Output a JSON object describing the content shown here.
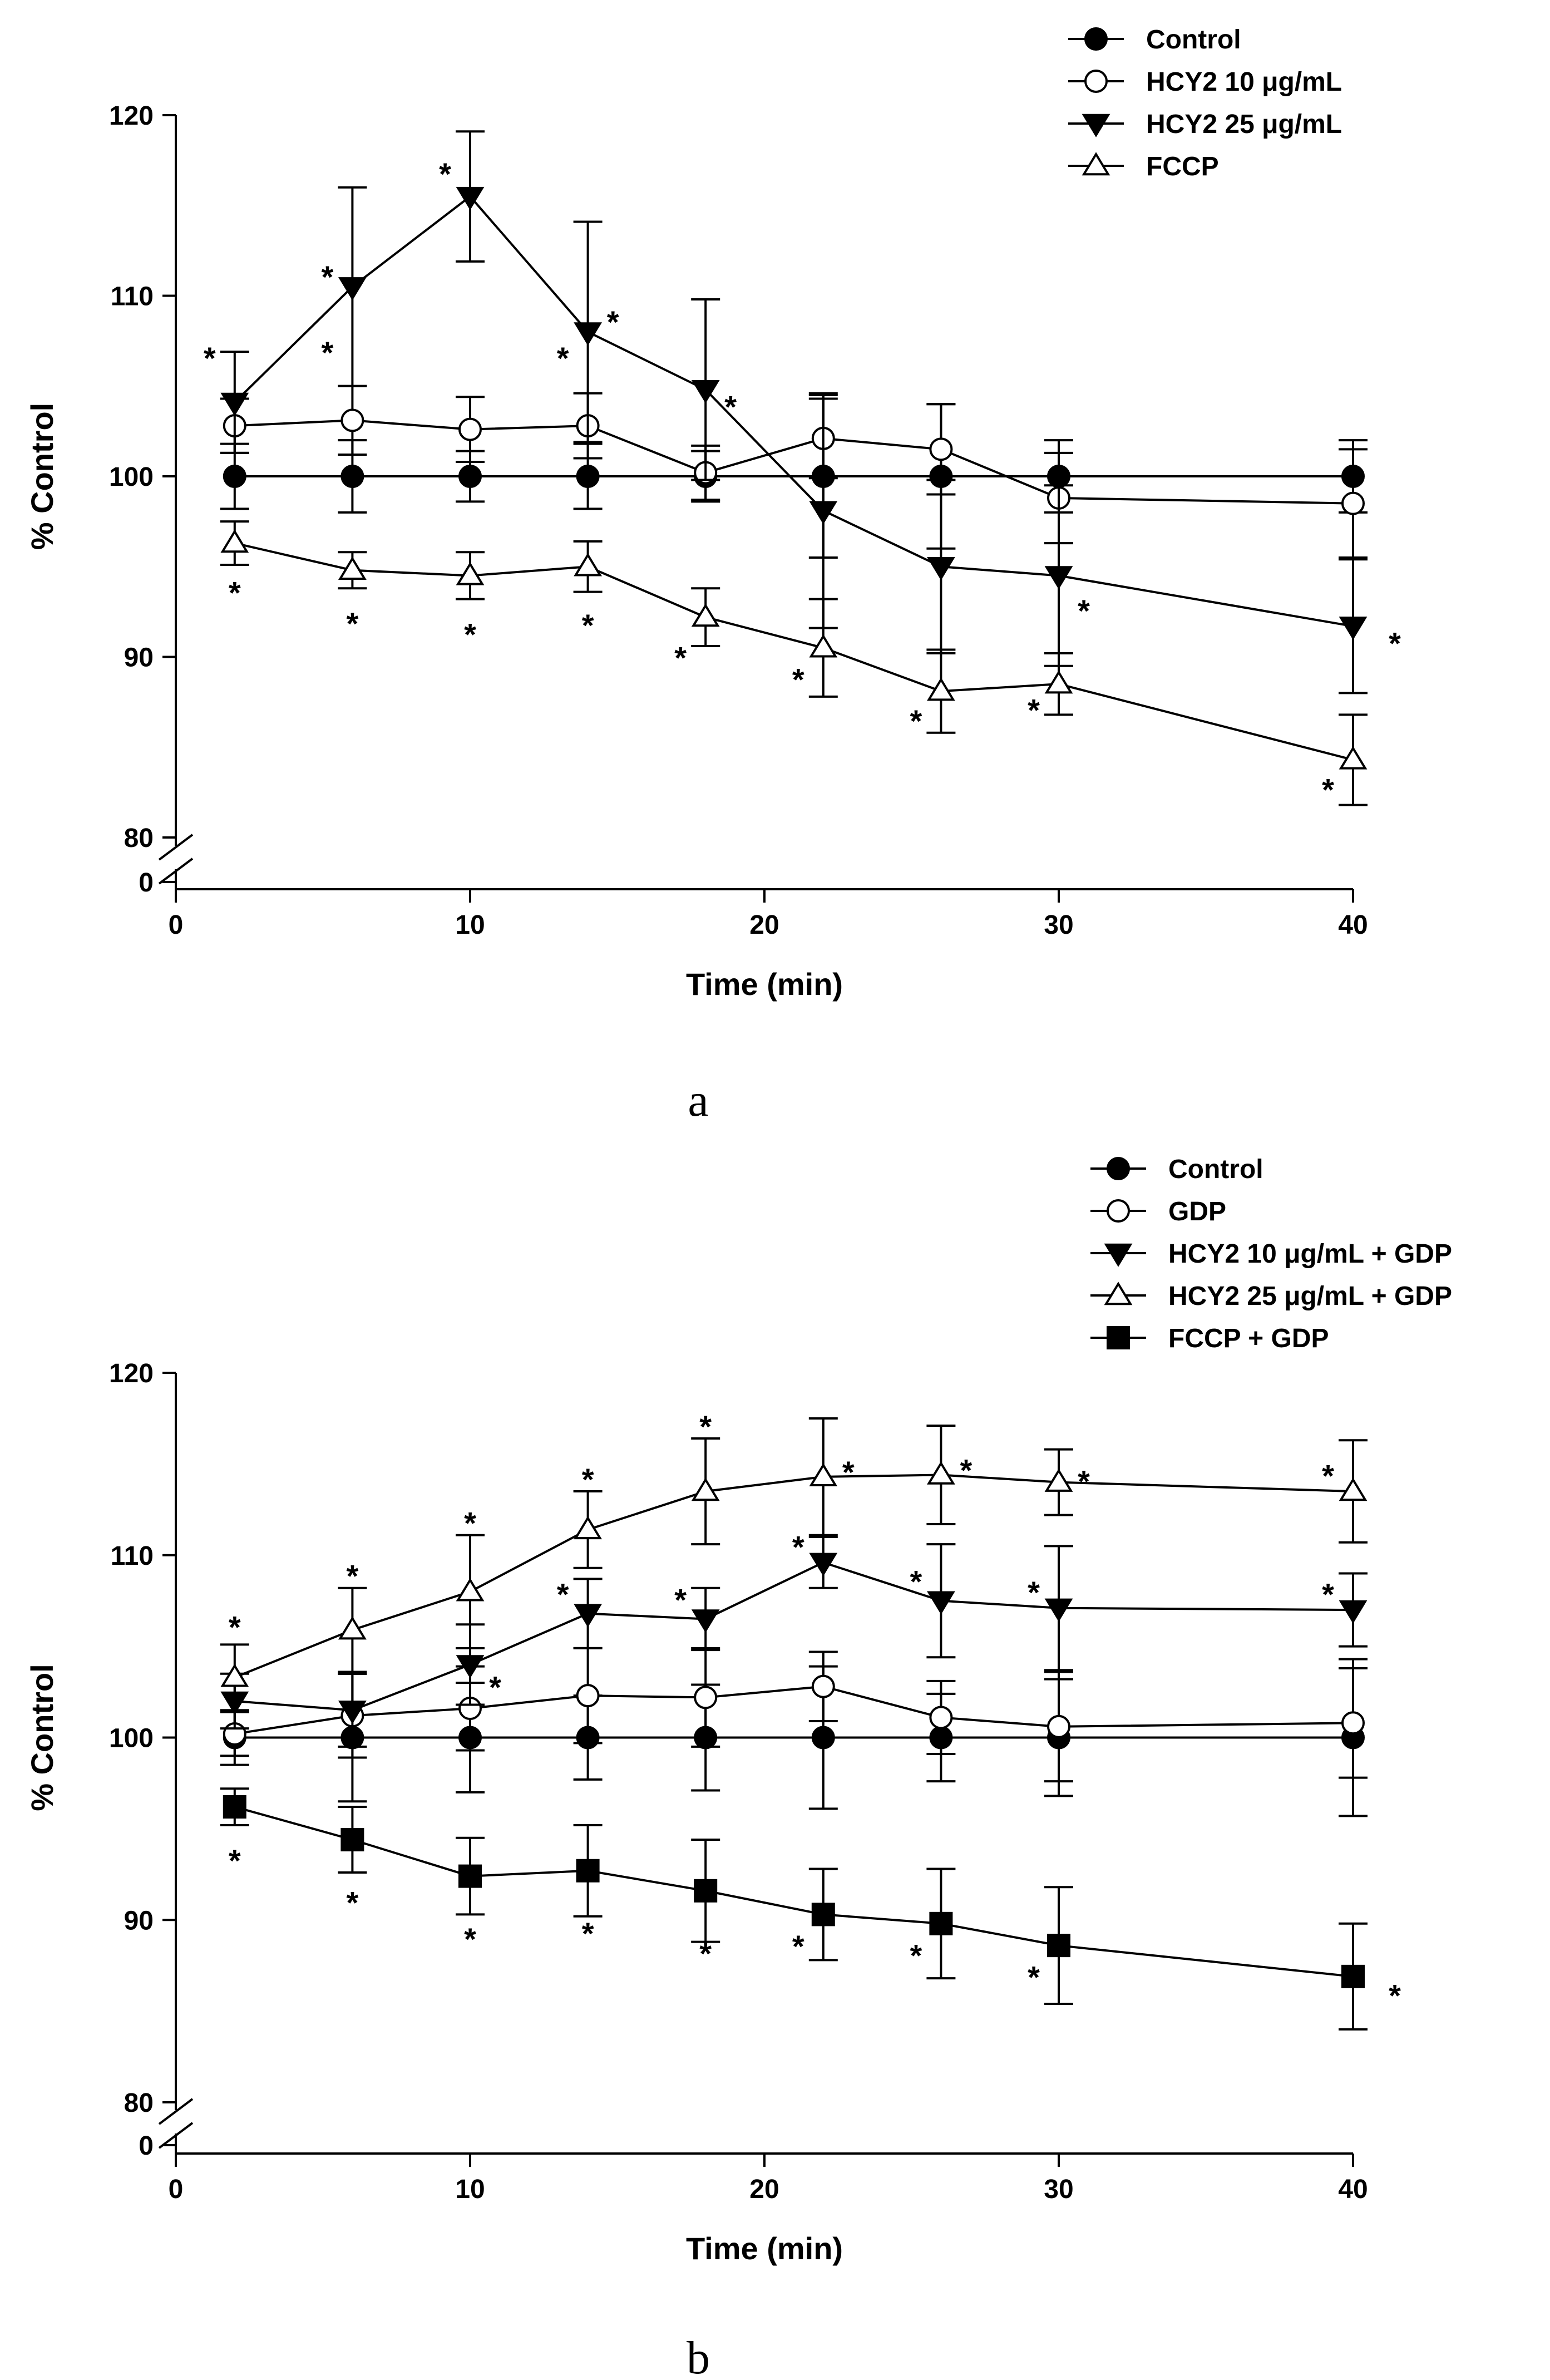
{
  "chart_data": [
    {
      "type": "line",
      "panel_label": "a",
      "xlabel": "Time (min)",
      "ylabel": "% Control",
      "xlim": [
        0,
        40
      ],
      "ylim": [
        80,
        120
      ],
      "axis_break": true,
      "x_ticks": [
        0,
        10,
        20,
        30,
        40
      ],
      "y_ticks": [
        80,
        90,
        100,
        110,
        120
      ],
      "y_break_label": "0",
      "legend_position": "top-right",
      "x": [
        2,
        6,
        10,
        14,
        18,
        22,
        26,
        30,
        40
      ],
      "series": [
        {
          "name": "Control",
          "marker": "circle-filled",
          "values": [
            100,
            100,
            100,
            100,
            100,
            100,
            100,
            100,
            100
          ],
          "errors": [
            1.8,
            2.0,
            1.4,
            1.8,
            1.4,
            4.5,
            4.0,
            2.0,
            2.0
          ],
          "stars": []
        },
        {
          "name": "HCY2 10 μg/mL",
          "marker": "circle-open",
          "values": [
            102.8,
            103.1,
            102.6,
            102.8,
            100.2,
            102.1,
            101.5,
            98.8,
            98.5
          ],
          "errors": [
            1.5,
            1.9,
            1.8,
            1.8,
            1.5,
            2.2,
            2.5,
            2.5,
            3.0
          ],
          "stars": [
            {
              "x": 2,
              "side": "left",
              "dy": 4.2
            },
            {
              "x": 6,
              "side": "left",
              "dy": 4.2
            },
            {
              "x": 14,
              "side": "left",
              "dy": 4.2
            }
          ]
        },
        {
          "name": "HCY2 25 μg/mL",
          "marker": "triangle-down-filled",
          "values": [
            104.1,
            110.5,
            115.5,
            108,
            104.8,
            98.1,
            95,
            94.5,
            91.7
          ],
          "errors": [
            2.8,
            5.5,
            3.6,
            6.1,
            5.0,
            6.5,
            4.8,
            5.0,
            3.7
          ],
          "stars": [
            {
              "x": 10,
              "side": "left",
              "dy": 1.7
            },
            {
              "x": 6,
              "side": "left",
              "dy": 1.0
            },
            {
              "x": 14,
              "side": "right",
              "dy": 1.0
            },
            {
              "x": 18,
              "side": "right",
              "dy": -0.5
            },
            {
              "x": 30,
              "side": "right",
              "dy": -1.5
            },
            {
              "x": 40,
              "side": "far-right",
              "dy": -0.5
            }
          ]
        },
        {
          "name": "FCCP",
          "marker": "triangle-up-open",
          "values": [
            96.3,
            94.8,
            94.5,
            95,
            92.2,
            90.5,
            88.1,
            88.5,
            84.3
          ],
          "errors": [
            1.2,
            1.0,
            1.3,
            1.4,
            1.6,
            2.7,
            2.3,
            1.7,
            2.5
          ],
          "stars": [
            {
              "x": 2,
              "side": "below",
              "dy": -2.3
            },
            {
              "x": 6,
              "side": "below",
              "dy": -2.5
            },
            {
              "x": 10,
              "side": "below",
              "dy": -2.8
            },
            {
              "x": 14,
              "side": "below",
              "dy": -2.8
            },
            {
              "x": 18,
              "side": "left",
              "dy": -1.8
            },
            {
              "x": 22,
              "side": "left",
              "dy": -1.3
            },
            {
              "x": 26,
              "side": "left",
              "dy": -1.2
            },
            {
              "x": 30,
              "side": "left",
              "dy": -1.0
            },
            {
              "x": 40,
              "side": "left",
              "dy": -1.2
            }
          ]
        }
      ]
    },
    {
      "type": "line",
      "panel_label": "b",
      "xlabel": "Time (min)",
      "ylabel": "% Control",
      "xlim": [
        0,
        40
      ],
      "ylim": [
        80,
        120
      ],
      "axis_break": true,
      "x_ticks": [
        0,
        10,
        20,
        30,
        40
      ],
      "y_ticks": [
        80,
        90,
        100,
        110,
        120
      ],
      "y_break_label": "0",
      "legend_position": "top-right",
      "x": [
        2,
        6,
        10,
        14,
        18,
        22,
        26,
        30,
        40
      ],
      "series": [
        {
          "name": "Control",
          "marker": "circle-filled",
          "values": [
            100,
            100,
            100,
            100,
            100,
            100,
            100,
            100,
            100
          ],
          "errors": [
            1.5,
            3.5,
            3.0,
            2.3,
            2.9,
            3.9,
            2.4,
            3.2,
            4.3
          ],
          "stars": []
        },
        {
          "name": "GDP",
          "marker": "circle-open",
          "values": [
            100.2,
            101.2,
            101.6,
            102.3,
            102.2,
            102.8,
            101.1,
            100.6,
            100.8
          ],
          "errors": [
            1.2,
            2.3,
            2.3,
            2.6,
            2.7,
            1.9,
            2.0,
            3.0,
            3.0
          ],
          "stars": []
        },
        {
          "name": "HCY2 10 μg/mL + GDP",
          "marker": "triangle-down-filled",
          "values": [
            102,
            101.5,
            104,
            106.8,
            106.5,
            109.6,
            107.5,
            107.1,
            107
          ],
          "errors": [
            1.5,
            2.0,
            2.2,
            1.9,
            1.7,
            1.4,
            3.1,
            3.4,
            2.0
          ],
          "stars": [
            {
              "x": 10,
              "side": "right",
              "dy": -0.8
            },
            {
              "x": 14,
              "side": "left",
              "dy": 1.5
            },
            {
              "x": 18,
              "side": "left",
              "dy": 1.5
            },
            {
              "x": 22,
              "side": "left",
              "dy": 1.3
            },
            {
              "x": 26,
              "side": "left",
              "dy": 1.5
            },
            {
              "x": 30,
              "side": "left",
              "dy": 1.3
            },
            {
              "x": 40,
              "side": "left",
              "dy": 1.3
            }
          ]
        },
        {
          "name": "HCY2 25 μg/mL + GDP",
          "marker": "triangle-up-open",
          "values": [
            103.3,
            105.9,
            108,
            111.4,
            113.5,
            114.3,
            114.4,
            114,
            113.5
          ],
          "errors": [
            1.8,
            2.3,
            3.1,
            2.1,
            2.9,
            3.2,
            2.7,
            1.8,
            2.8
          ],
          "stars": [
            {
              "x": 2,
              "side": "above",
              "dy": 3.2
            },
            {
              "x": 6,
              "side": "above",
              "dy": 3.4
            },
            {
              "x": 10,
              "side": "above",
              "dy": 4.2
            },
            {
              "x": 14,
              "side": "above",
              "dy": 3.2
            },
            {
              "x": 18,
              "side": "above",
              "dy": 4.0
            },
            {
              "x": 22,
              "side": "right",
              "dy": 0.7
            },
            {
              "x": 26,
              "side": "right",
              "dy": 0.7
            },
            {
              "x": 30,
              "side": "right",
              "dy": 0.5
            },
            {
              "x": 40,
              "side": "left",
              "dy": 1.3
            }
          ]
        },
        {
          "name": "FCCP + GDP",
          "marker": "square-filled",
          "values": [
            96.2,
            94.4,
            92.4,
            92.7,
            91.6,
            90.3,
            89.8,
            88.6,
            86.9
          ],
          "errors": [
            1.0,
            1.8,
            2.1,
            2.5,
            2.8,
            2.5,
            3.0,
            3.2,
            2.9
          ],
          "stars": [
            {
              "x": 2,
              "side": "below",
              "dy": -2.5
            },
            {
              "x": 6,
              "side": "below",
              "dy": -3.0
            },
            {
              "x": 10,
              "side": "below",
              "dy": -3.0
            },
            {
              "x": 14,
              "side": "below",
              "dy": -3.0
            },
            {
              "x": 18,
              "side": "below",
              "dy": -3.0
            },
            {
              "x": 22,
              "side": "left",
              "dy": -1.3
            },
            {
              "x": 26,
              "side": "left",
              "dy": -1.3
            },
            {
              "x": 30,
              "side": "left",
              "dy": -1.3
            },
            {
              "x": 40,
              "side": "far-right",
              "dy": -0.6
            }
          ]
        }
      ]
    }
  ],
  "star_symbol": "*"
}
